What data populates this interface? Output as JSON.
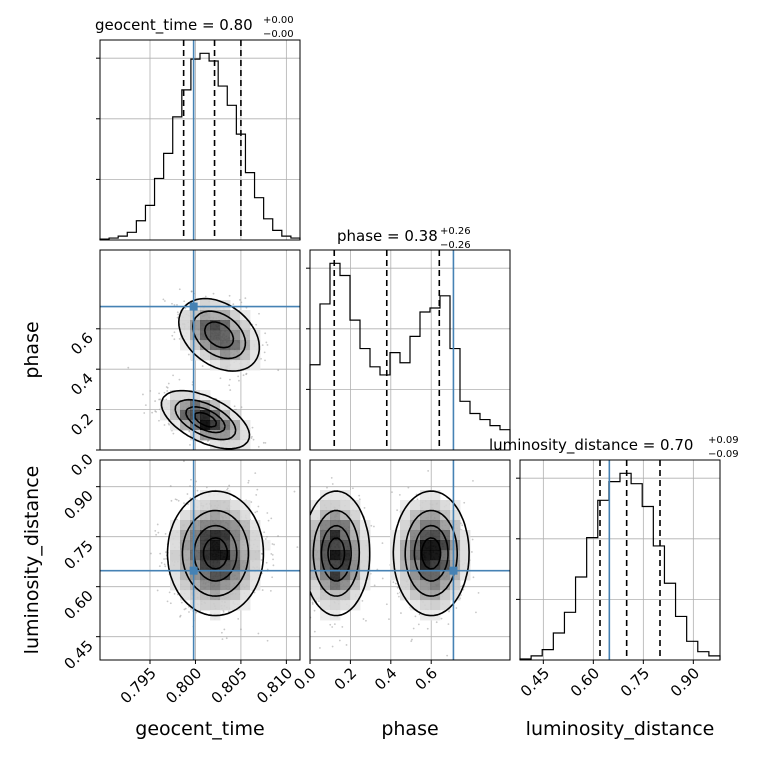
{
  "chart_data": {
    "type": "corner",
    "parameters": [
      {
        "name": "geocent_time",
        "range": [
          0.7895,
          0.8115
        ],
        "ticks": [
          0.795,
          0.8,
          0.805,
          0.81
        ],
        "tick_labels": [
          "0.795",
          "0.800",
          "0.805",
          "0.810"
        ],
        "truth": 0.7998,
        "quantiles": [
          0.7987,
          0.8021,
          0.805
        ],
        "title": {
          "base": "geocent_time = 0.80",
          "upper": "+0.00",
          "lower": "−0.00"
        },
        "hist": [
          0.5,
          1,
          2,
          4,
          10,
          18,
          32,
          45,
          64,
          78,
          94,
          97,
          93,
          80,
          70,
          55,
          35,
          22,
          11,
          5,
          2,
          1
        ]
      },
      {
        "name": "phase",
        "range": [
          0.0,
          0.99
        ],
        "ticks": [
          0.0,
          0.2,
          0.4,
          0.6
        ],
        "tick_labels": [
          "0.0",
          "0.2",
          "0.4",
          "0.6"
        ],
        "truth": 0.71,
        "quantiles": [
          0.12,
          0.38,
          0.64
        ],
        "title": {
          "base": "phase = 0.38",
          "upper": "+0.26",
          "lower": "−0.26"
        },
        "hist": [
          42,
          72,
          92,
          86,
          64,
          50,
          41,
          37,
          48,
          43,
          56,
          68,
          70,
          76,
          50,
          24,
          18,
          15,
          12,
          10
        ]
      },
      {
        "name": "luminosity_distance",
        "range": [
          0.38,
          0.98
        ],
        "ticks": [
          0.45,
          0.6,
          0.75,
          0.9
        ],
        "tick_labels": [
          "0.45",
          "0.60",
          "0.75",
          "0.90"
        ],
        "truth": 0.648,
        "quantiles": [
          0.62,
          0.7,
          0.8
        ],
        "title": {
          "base": "luminosity_distance = 0.70",
          "upper": "+0.09",
          "lower": "−0.09"
        },
        "hist": [
          0.5,
          2,
          5,
          13,
          23,
          40,
          59,
          77,
          86,
          90,
          85,
          74,
          55,
          37,
          21,
          9,
          4,
          2
        ]
      }
    ],
    "pairs": [
      {
        "x": "geocent_time",
        "y": "phase"
      },
      {
        "x": "geocent_time",
        "y": "luminosity_distance"
      },
      {
        "x": "phase",
        "y": "luminosity_distance"
      }
    ],
    "truth_point": {
      "geocent_time": 0.7998,
      "phase": 0.71,
      "luminosity_distance": 0.648
    },
    "quantile_levels": [
      0.16,
      0.5,
      0.84
    ],
    "grid": true
  }
}
